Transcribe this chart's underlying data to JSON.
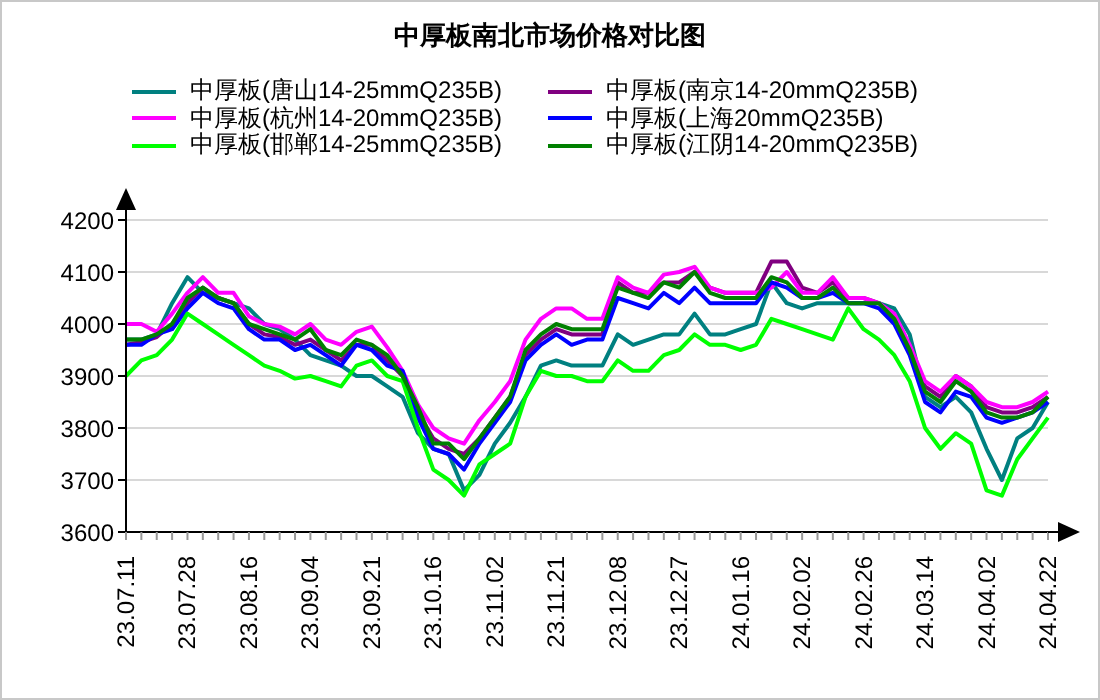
{
  "chart_data": {
    "type": "line",
    "title": "中厚板南北市场价格对比图",
    "categories": [
      "23.07.11",
      null,
      null,
      null,
      "23.07.28",
      null,
      null,
      null,
      "23.08.16",
      null,
      null,
      null,
      "23.09.04",
      null,
      null,
      null,
      "23.09.21",
      null,
      null,
      null,
      "23.10.16",
      null,
      null,
      null,
      "23.11.02",
      null,
      null,
      null,
      "23.11.21",
      null,
      null,
      null,
      "23.12.08",
      null,
      null,
      null,
      "23.12.27",
      null,
      null,
      null,
      "24.01.16",
      null,
      null,
      null,
      "24.02.02",
      null,
      null,
      null,
      "24.02.26",
      null,
      null,
      null,
      "24.03.14",
      null,
      null,
      null,
      "24.04.02",
      null,
      null,
      null,
      "24.04.22"
    ],
    "series": [
      {
        "name": "中厚板(唐山14-25mmQ235B)",
        "color": "#008080",
        "values": [
          3970,
          3970,
          3980,
          4040,
          4090,
          4060,
          4050,
          4040,
          4030,
          4000,
          3990,
          3970,
          3940,
          3930,
          3920,
          3900,
          3900,
          3880,
          3860,
          3790,
          3760,
          3750,
          3680,
          3710,
          3770,
          3810,
          3860,
          3920,
          3930,
          3920,
          3920,
          3920,
          3980,
          3960,
          3970,
          3980,
          3980,
          4020,
          3980,
          3980,
          3990,
          4000,
          4080,
          4040,
          4030,
          4040,
          4040,
          4040,
          4040,
          4040,
          4030,
          3980,
          3860,
          3840,
          3860,
          3830,
          3760,
          3700,
          3780,
          3800,
          3850
        ]
      },
      {
        "name": "中厚板(南京14-20mmQ235B)",
        "color": "#800080",
        "values": [
          3960,
          3965,
          3975,
          4000,
          4040,
          4070,
          4050,
          4040,
          4000,
          3980,
          3975,
          3960,
          3970,
          3950,
          3930,
          3960,
          3960,
          3930,
          3900,
          3830,
          3780,
          3760,
          3750,
          3780,
          3820,
          3860,
          3940,
          3970,
          3990,
          3980,
          3980,
          3980,
          4080,
          4060,
          4060,
          4080,
          4080,
          4100,
          4070,
          4060,
          4060,
          4060,
          4120,
          4120,
          4070,
          4060,
          4080,
          4050,
          4050,
          4040,
          4010,
          3950,
          3880,
          3860,
          3900,
          3880,
          3840,
          3830,
          3830,
          3840,
          3860
        ]
      },
      {
        "name": "中厚板(杭州14-20mmQ235B)",
        "color": "#ff00ff",
        "values": [
          4000,
          4000,
          3985,
          4020,
          4060,
          4090,
          4060,
          4060,
          4015,
          4000,
          3995,
          3980,
          4000,
          3970,
          3960,
          3985,
          3995,
          3955,
          3910,
          3845,
          3800,
          3780,
          3770,
          3815,
          3850,
          3890,
          3970,
          4010,
          4030,
          4030,
          4010,
          4010,
          4090,
          4070,
          4060,
          4095,
          4100,
          4110,
          4070,
          4060,
          4060,
          4060,
          4070,
          4100,
          4060,
          4060,
          4090,
          4050,
          4050,
          4040,
          4020,
          3960,
          3890,
          3870,
          3900,
          3880,
          3850,
          3840,
          3840,
          3850,
          3870
        ]
      },
      {
        "name": "中厚板(上海20mmQ235B)",
        "color": "#0000ff",
        "values": [
          3960,
          3960,
          3980,
          3990,
          4030,
          4060,
          4040,
          4030,
          3990,
          3970,
          3970,
          3950,
          3960,
          3940,
          3920,
          3960,
          3950,
          3920,
          3910,
          3820,
          3760,
          3750,
          3720,
          3770,
          3810,
          3850,
          3930,
          3960,
          3980,
          3960,
          3970,
          3970,
          4050,
          4040,
          4030,
          4060,
          4040,
          4070,
          4040,
          4040,
          4040,
          4040,
          4080,
          4070,
          4050,
          4050,
          4060,
          4040,
          4040,
          4030,
          4000,
          3940,
          3850,
          3830,
          3870,
          3860,
          3820,
          3810,
          3820,
          3830,
          3850
        ]
      },
      {
        "name": "中厚板(邯郸14-25mmQ235B)",
        "color": "#00ff00",
        "values": [
          3900,
          3930,
          3940,
          3970,
          4020,
          4000,
          3980,
          3960,
          3940,
          3920,
          3910,
          3895,
          3900,
          3890,
          3880,
          3920,
          3930,
          3900,
          3890,
          3800,
          3720,
          3700,
          3670,
          3730,
          3750,
          3770,
          3860,
          3910,
          3900,
          3900,
          3890,
          3890,
          3930,
          3910,
          3910,
          3940,
          3950,
          3980,
          3960,
          3960,
          3950,
          3960,
          4010,
          4000,
          3990,
          3980,
          3970,
          4030,
          3990,
          3970,
          3940,
          3890,
          3800,
          3760,
          3790,
          3770,
          3680,
          3670,
          3740,
          3780,
          3820
        ]
      },
      {
        "name": "中厚板(江阴14-20mmQ235B)",
        "color": "#008000",
        "values": [
          3970,
          3970,
          3980,
          4000,
          4050,
          4070,
          4050,
          4040,
          4000,
          3990,
          3980,
          3970,
          3990,
          3950,
          3940,
          3970,
          3960,
          3940,
          3900,
          3840,
          3770,
          3770,
          3740,
          3780,
          3820,
          3860,
          3950,
          3980,
          4000,
          3990,
          3990,
          3990,
          4070,
          4060,
          4050,
          4080,
          4070,
          4100,
          4060,
          4050,
          4050,
          4050,
          4090,
          4080,
          4050,
          4050,
          4070,
          4040,
          4040,
          4040,
          4010,
          3950,
          3870,
          3850,
          3890,
          3870,
          3830,
          3820,
          3820,
          3830,
          3860
        ]
      }
    ],
    "ylim": [
      3600,
      4200
    ],
    "yticks": [
      3600,
      3700,
      3800,
      3900,
      4000,
      4100,
      4200
    ],
    "grid": "y",
    "legend": "top"
  }
}
